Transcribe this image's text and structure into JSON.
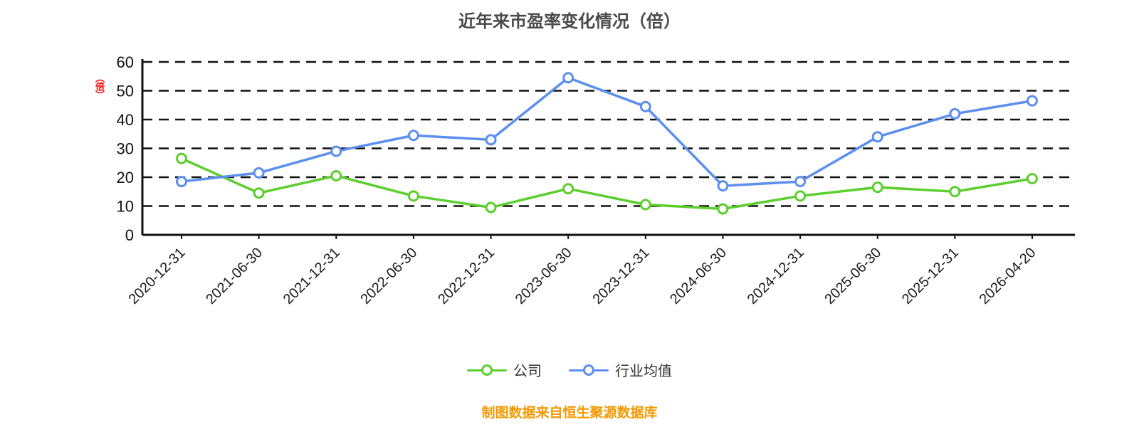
{
  "chart": {
    "title": "近年来市盈率变化情况（倍）",
    "y_unit": "（倍）"
  },
  "footer": {
    "source": "制图数据来自恒生聚源数据库"
  },
  "chart_data": {
    "type": "line",
    "title": "近年来市盈率变化情况（倍）",
    "ylabel": "（倍）",
    "xlabel": "",
    "categories": [
      "2020-12-31",
      "2021-06-30",
      "2021-12-31",
      "2022-06-30",
      "2022-12-31",
      "2023-06-30",
      "2023-12-31",
      "2024-06-30",
      "2024-12-31",
      "2025-06-30",
      "2025-12-31",
      "2026-04-20"
    ],
    "series": [
      {
        "name": "公司",
        "color": "#5ccf2e",
        "values": [
          26.5,
          14.5,
          20.5,
          13.5,
          9.5,
          16,
          10.5,
          9,
          13.5,
          16.5,
          15,
          19.5
        ]
      },
      {
        "name": "行业均值",
        "color": "#5c8fee",
        "values": [
          18.5,
          21.5,
          29,
          34.5,
          33,
          54.5,
          44.5,
          17,
          18.5,
          34,
          42,
          46.5
        ]
      }
    ],
    "ylim": [
      0,
      60
    ],
    "ytick_step": 10,
    "grid": "dashed-horizontal",
    "legend_position": "bottom"
  }
}
